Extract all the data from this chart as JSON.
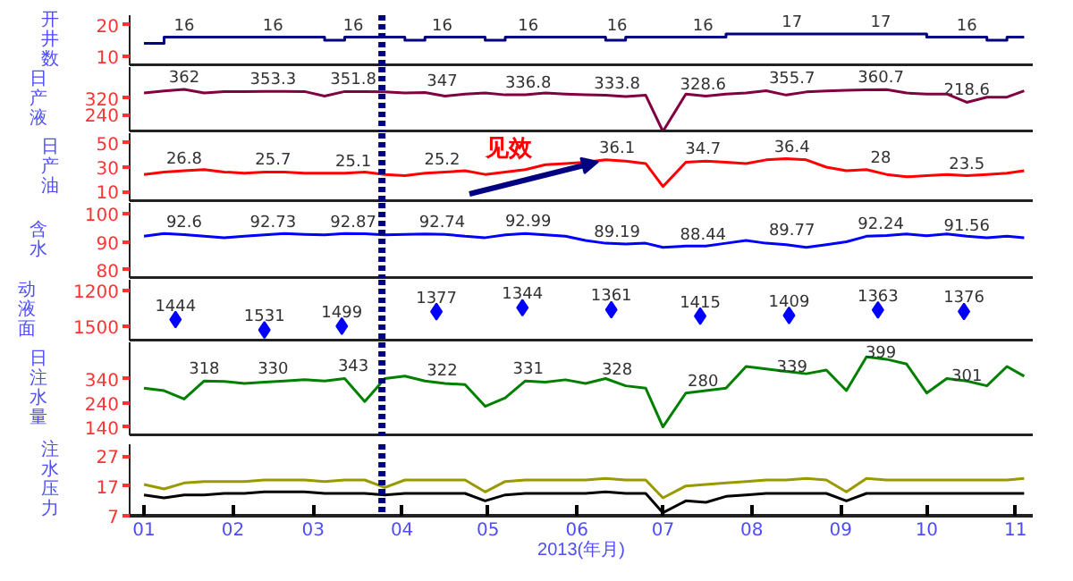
{
  "chart_data": [
    {
      "type": "step",
      "ylabel": "开井数",
      "xlim": [
        "2012-12-27",
        "2013-11-07"
      ],
      "ylim": [
        7,
        23
      ],
      "yticks": [
        10,
        20
      ],
      "tick_labels": "y",
      "color": "#000080",
      "x": [
        "2013-01-01",
        "2013-01-08",
        "2013-01-15",
        "2013-01-22",
        "2013-01-29",
        "2013-02-05",
        "2013-02-12",
        "2013-02-19",
        "2013-02-26",
        "2013-03-05",
        "2013-03-12",
        "2013-03-19",
        "2013-03-26",
        "2013-04-02",
        "2013-04-09",
        "2013-04-16",
        "2013-04-23",
        "2013-04-30",
        "2013-05-07",
        "2013-05-14",
        "2013-05-21",
        "2013-05-28",
        "2013-06-04",
        "2013-06-11",
        "2013-06-18",
        "2013-06-25",
        "2013-07-01",
        "2013-07-09",
        "2013-07-16",
        "2013-07-23",
        "2013-07-30",
        "2013-08-06",
        "2013-08-13",
        "2013-08-20",
        "2013-08-27",
        "2013-09-03",
        "2013-09-10",
        "2013-09-17",
        "2013-09-24",
        "2013-10-01",
        "2013-10-08",
        "2013-10-15",
        "2013-10-22",
        "2013-10-29",
        "2013-11-04"
      ],
      "values": [
        14,
        16,
        16,
        16,
        16,
        16,
        16,
        16,
        16,
        15,
        16,
        16,
        16,
        15,
        16,
        16,
        16,
        15,
        16,
        16,
        16,
        16,
        16,
        15,
        16,
        16,
        16,
        16,
        16,
        17,
        17,
        17,
        17,
        17,
        17,
        17,
        17,
        17,
        17,
        16,
        16,
        16,
        15,
        16,
        16
      ],
      "annotations": [
        {
          "text": "16",
          "x": "2013-01-15",
          "y": 16
        },
        {
          "text": "16",
          "x": "2013-02-15",
          "y": 16
        },
        {
          "text": "16",
          "x": "2013-03-15",
          "y": 16
        },
        {
          "text": "16",
          "x": "2013-04-15",
          "y": 16
        },
        {
          "text": "16",
          "x": "2013-05-15",
          "y": 16
        },
        {
          "text": "16",
          "x": "2013-06-15",
          "y": 16
        },
        {
          "text": "16",
          "x": "2013-07-15",
          "y": 16
        },
        {
          "text": "17",
          "x": "2013-08-15",
          "y": 17
        },
        {
          "text": "17",
          "x": "2013-09-15",
          "y": 17
        },
        {
          "text": "16",
          "x": "2013-10-15",
          "y": 16
        }
      ],
      "ref_lines": [
        {
          "axis": "x",
          "value": "2013-03-25",
          "color": "#000080",
          "line_style": "dotted"
        }
      ]
    },
    {
      "type": "line",
      "ylabel": "日产液",
      "xlim": [
        "2012-12-27",
        "2013-11-07"
      ],
      "ylim": [
        160,
        470
      ],
      "yticks": [
        240,
        320
      ],
      "tick_labels": "y",
      "color": "#800040",
      "x": [
        "2013-01-01",
        "2013-01-08",
        "2013-01-15",
        "2013-01-22",
        "2013-01-29",
        "2013-02-05",
        "2013-02-12",
        "2013-02-19",
        "2013-02-26",
        "2013-03-05",
        "2013-03-12",
        "2013-03-19",
        "2013-03-26",
        "2013-04-02",
        "2013-04-09",
        "2013-04-16",
        "2013-04-23",
        "2013-04-30",
        "2013-05-07",
        "2013-05-14",
        "2013-05-21",
        "2013-05-28",
        "2013-06-04",
        "2013-06-11",
        "2013-06-18",
        "2013-06-25",
        "2013-07-01",
        "2013-07-09",
        "2013-07-16",
        "2013-07-23",
        "2013-07-30",
        "2013-08-06",
        "2013-08-13",
        "2013-08-20",
        "2013-08-27",
        "2013-09-03",
        "2013-09-10",
        "2013-09-17",
        "2013-09-24",
        "2013-10-01",
        "2013-10-08",
        "2013-10-15",
        "2013-10-22",
        "2013-10-29",
        "2013-11-04"
      ],
      "values": [
        345,
        355,
        362,
        345,
        352,
        352,
        353,
        353,
        352,
        330,
        352,
        352,
        350,
        345,
        347,
        330,
        340,
        345,
        336,
        337,
        345,
        340,
        337,
        334,
        328,
        334,
        160,
        340,
        330,
        340,
        345,
        356,
        335,
        350,
        355,
        358,
        360,
        361,
        345,
        340,
        340,
        300,
        325,
        325,
        355
      ],
      "annotations": [
        {
          "text": "362",
          "x": "2013-01-15",
          "y": 362
        },
        {
          "text": "353.3",
          "x": "2013-02-15",
          "y": 353
        },
        {
          "text": "351.8",
          "x": "2013-03-15",
          "y": 352
        },
        {
          "text": "347",
          "x": "2013-04-15",
          "y": 347
        },
        {
          "text": "336.8",
          "x": "2013-05-15",
          "y": 337
        },
        {
          "text": "333.8",
          "x": "2013-06-15",
          "y": 334
        },
        {
          "text": "328.6",
          "x": "2013-07-15",
          "y": 329
        },
        {
          "text": "355.7",
          "x": "2013-08-15",
          "y": 356
        },
        {
          "text": "360.7",
          "x": "2013-09-15",
          "y": 361
        },
        {
          "text": "218.6",
          "x": "2013-10-15",
          "y": 300
        }
      ],
      "ref_lines": [
        {
          "axis": "x",
          "value": "2013-03-25",
          "color": "#000080",
          "line_style": "dotted"
        }
      ]
    },
    {
      "type": "line",
      "ylabel": "日产油",
      "xlim": [
        "2012-12-27",
        "2013-11-07"
      ],
      "ylim": [
        2,
        58
      ],
      "yticks": [
        10,
        30,
        50
      ],
      "tick_labels": "y",
      "color": "#ff0000",
      "x": [
        "2013-01-01",
        "2013-01-08",
        "2013-01-15",
        "2013-01-22",
        "2013-01-29",
        "2013-02-05",
        "2013-02-12",
        "2013-02-19",
        "2013-02-26",
        "2013-03-05",
        "2013-03-12",
        "2013-03-19",
        "2013-03-26",
        "2013-04-02",
        "2013-04-09",
        "2013-04-16",
        "2013-04-23",
        "2013-04-30",
        "2013-05-07",
        "2013-05-14",
        "2013-05-21",
        "2013-05-28",
        "2013-06-04",
        "2013-06-11",
        "2013-06-18",
        "2013-06-25",
        "2013-07-01",
        "2013-07-09",
        "2013-07-16",
        "2013-07-23",
        "2013-07-30",
        "2013-08-06",
        "2013-08-13",
        "2013-08-20",
        "2013-08-27",
        "2013-09-03",
        "2013-09-10",
        "2013-09-17",
        "2013-09-24",
        "2013-10-01",
        "2013-10-08",
        "2013-10-15",
        "2013-10-22",
        "2013-10-29",
        "2013-11-04"
      ],
      "values": [
        24,
        26,
        27,
        28,
        26,
        25,
        26,
        26,
        25,
        25,
        25,
        26,
        24,
        23,
        25,
        26,
        27,
        24,
        26,
        28,
        32,
        33,
        34,
        36,
        35,
        33,
        14,
        34,
        35,
        34,
        33,
        36,
        37,
        36,
        30,
        27,
        28,
        24,
        22,
        23,
        24,
        23,
        24,
        25,
        27
      ],
      "annotations": [
        {
          "text": "26.8",
          "x": "2013-01-15",
          "y": 27
        },
        {
          "text": "25.7",
          "x": "2013-02-15",
          "y": 26
        },
        {
          "text": "25.1",
          "x": "2013-03-15",
          "y": 25
        },
        {
          "text": "25.2",
          "x": "2013-04-15",
          "y": 26
        },
        "见效",
        {
          "text": "36.1",
          "x": "2013-06-15",
          "y": 36
        },
        {
          "text": "34.7",
          "x": "2013-07-15",
          "y": 35
        },
        {
          "text": "36.4",
          "x": "2013-08-15",
          "y": 37
        },
        {
          "text": "28",
          "x": "2013-09-15",
          "y": 28
        },
        {
          "text": "23.5",
          "x": "2013-10-15",
          "y": 23
        }
      ],
      "ref_lines": [
        {
          "axis": "x",
          "value": "2013-03-25",
          "color": "#000080",
          "line_style": "dotted"
        }
      ]
    },
    {
      "type": "line",
      "ylabel": "含水",
      "xlim": [
        "2012-12-27",
        "2013-11-07"
      ],
      "ylim": [
        77,
        104
      ],
      "yticks": [
        80,
        90,
        100
      ],
      "tick_labels": "y",
      "color": "#0000ff",
      "x": [
        "2013-01-01",
        "2013-01-08",
        "2013-01-15",
        "2013-01-22",
        "2013-01-29",
        "2013-02-05",
        "2013-02-12",
        "2013-02-19",
        "2013-02-26",
        "2013-03-05",
        "2013-03-12",
        "2013-03-19",
        "2013-03-26",
        "2013-04-02",
        "2013-04-09",
        "2013-04-16",
        "2013-04-23",
        "2013-04-30",
        "2013-05-07",
        "2013-05-14",
        "2013-05-21",
        "2013-05-28",
        "2013-06-04",
        "2013-06-11",
        "2013-06-18",
        "2013-06-25",
        "2013-07-01",
        "2013-07-09",
        "2013-07-16",
        "2013-07-23",
        "2013-07-30",
        "2013-08-06",
        "2013-08-13",
        "2013-08-20",
        "2013-08-27",
        "2013-09-03",
        "2013-09-10",
        "2013-09-17",
        "2013-09-24",
        "2013-10-01",
        "2013-10-08",
        "2013-10-15",
        "2013-10-22",
        "2013-10-29",
        "2013-11-04"
      ],
      "values": [
        92,
        93,
        92.6,
        92,
        91.5,
        92,
        92.5,
        93,
        92.7,
        92.5,
        93,
        92.9,
        92.5,
        92.7,
        92.8,
        92.7,
        92,
        91.5,
        92.5,
        93,
        92.5,
        92,
        90.5,
        89.5,
        89.2,
        89.5,
        88,
        88.5,
        88.5,
        89.5,
        90.5,
        89.5,
        89,
        88,
        89,
        90,
        92,
        92.3,
        92.8,
        92.2,
        92.8,
        92,
        91.5,
        92,
        91.5
      ],
      "annotations": [
        {
          "text": "92.6",
          "x": "2013-01-15",
          "y": 92.6
        },
        {
          "text": "92.73",
          "x": "2013-02-15",
          "y": 92.7
        },
        {
          "text": "92.87",
          "x": "2013-03-15",
          "y": 92.9
        },
        {
          "text": "92.74",
          "x": "2013-04-15",
          "y": 92.7
        },
        {
          "text": "92.99",
          "x": "2013-05-15",
          "y": 93
        },
        {
          "text": "89.19",
          "x": "2013-06-15",
          "y": 89.2
        },
        {
          "text": "88.44",
          "x": "2013-07-15",
          "y": 88.4
        },
        {
          "text": "89.77",
          "x": "2013-08-15",
          "y": 89.8
        },
        {
          "text": "92.24",
          "x": "2013-09-15",
          "y": 92.2
        },
        {
          "text": "91.56",
          "x": "2013-10-15",
          "y": 91.6
        }
      ],
      "ref_lines": [
        {
          "axis": "x",
          "value": "2013-03-25",
          "color": "#000080",
          "line_style": "dotted"
        }
      ]
    },
    {
      "type": "scatter",
      "ylabel": "动液面",
      "xlim": [
        "2012-12-27",
        "2013-11-07"
      ],
      "ylim": [
        1620,
        1110
      ],
      "yticks": [
        1200,
        1500
      ],
      "tick_labels": "y",
      "color": "#0000ff",
      "marker": "diamond",
      "data_labels": true,
      "x": [
        "2013-01-12",
        "2013-02-12",
        "2013-03-11",
        "2013-04-13",
        "2013-05-13",
        "2013-06-13",
        "2013-07-14",
        "2013-08-14",
        "2013-09-14",
        "2013-10-14"
      ],
      "values": [
        1444,
        1531,
        1499,
        1377,
        1344,
        1361,
        1415,
        1409,
        1363,
        1376
      ],
      "ref_lines": [
        {
          "axis": "x",
          "value": "2013-03-25",
          "color": "#000080",
          "line_style": "dotted"
        }
      ]
    },
    {
      "type": "line",
      "ylabel": "日注水量",
      "xlim": [
        "2012-12-27",
        "2013-11-07"
      ],
      "ylim": [
        105,
        490
      ],
      "yticks": [
        140,
        240,
        340
      ],
      "tick_labels": "y",
      "color": "#008000",
      "x": [
        "2013-01-01",
        "2013-01-08",
        "2013-01-15",
        "2013-01-22",
        "2013-01-29",
        "2013-02-05",
        "2013-02-12",
        "2013-02-19",
        "2013-02-26",
        "2013-03-05",
        "2013-03-12",
        "2013-03-19",
        "2013-03-26",
        "2013-04-02",
        "2013-04-09",
        "2013-04-16",
        "2013-04-23",
        "2013-04-30",
        "2013-05-07",
        "2013-05-14",
        "2013-05-21",
        "2013-05-28",
        "2013-06-04",
        "2013-06-11",
        "2013-06-18",
        "2013-06-25",
        "2013-07-01",
        "2013-07-09",
        "2013-07-16",
        "2013-07-23",
        "2013-07-30",
        "2013-08-06",
        "2013-08-13",
        "2013-08-20",
        "2013-08-27",
        "2013-09-03",
        "2013-09-10",
        "2013-09-17",
        "2013-09-24",
        "2013-10-01",
        "2013-10-08",
        "2013-10-15",
        "2013-10-22",
        "2013-10-29",
        "2013-11-04"
      ],
      "values": [
        300,
        290,
        255,
        330,
        328,
        320,
        325,
        330,
        335,
        330,
        340,
        245,
        340,
        350,
        330,
        320,
        315,
        225,
        260,
        330,
        325,
        335,
        320,
        340,
        310,
        300,
        140,
        280,
        290,
        300,
        390,
        380,
        370,
        360,
        375,
        290,
        430,
        420,
        400,
        280,
        340,
        330,
        310,
        390,
        350
      ],
      "annotations": [
        {
          "text": "318",
          "x": "2013-01-22",
          "y": 330
        },
        {
          "text": "330",
          "x": "2013-02-15",
          "y": 330
        },
        {
          "text": "343",
          "x": "2013-03-15",
          "y": 343
        },
        {
          "text": "322",
          "x": "2013-04-15",
          "y": 322
        },
        {
          "text": "331",
          "x": "2013-05-15",
          "y": 331
        },
        {
          "text": "328",
          "x": "2013-06-15",
          "y": 328
        },
        {
          "text": "280",
          "x": "2013-07-15",
          "y": 280
        },
        {
          "text": "339",
          "x": "2013-08-15",
          "y": 339
        },
        {
          "text": "399",
          "x": "2013-09-15",
          "y": 399
        },
        {
          "text": "301",
          "x": "2013-10-15",
          "y": 301
        }
      ],
      "ref_lines": [
        {
          "axis": "x",
          "value": "2013-03-25",
          "color": "#000080",
          "line_style": "dotted"
        }
      ]
    },
    {
      "type": "line",
      "ylabel": "注水压力",
      "xlabel": "2013(年月)",
      "xlim": [
        "2012-12-27",
        "2013-11-07"
      ],
      "xticks": [
        {
          "value": "2013-01-01",
          "label": "01"
        },
        {
          "value": "2013-02-01",
          "label": "02"
        },
        {
          "value": "2013-03-01",
          "label": "03"
        },
        {
          "value": "2013-04-01",
          "label": "04"
        },
        {
          "value": "2013-05-01",
          "label": "05"
        },
        {
          "value": "2013-06-01",
          "label": "06"
        },
        {
          "value": "2013-07-01",
          "label": "07"
        },
        {
          "value": "2013-08-01",
          "label": "08"
        },
        {
          "value": "2013-09-01",
          "label": "09"
        },
        {
          "value": "2013-10-01",
          "label": "10"
        },
        {
          "value": "2013-11-01",
          "label": "11"
        }
      ],
      "ylim": [
        7,
        31
      ],
      "yticks": [
        7,
        17,
        27
      ],
      "x": [
        "2013-01-01",
        "2013-01-08",
        "2013-01-15",
        "2013-01-22",
        "2013-01-29",
        "2013-02-05",
        "2013-02-12",
        "2013-02-19",
        "2013-02-26",
        "2013-03-05",
        "2013-03-12",
        "2013-03-19",
        "2013-03-26",
        "2013-04-02",
        "2013-04-09",
        "2013-04-16",
        "2013-04-23",
        "2013-04-30",
        "2013-05-07",
        "2013-05-14",
        "2013-05-21",
        "2013-05-28",
        "2013-06-04",
        "2013-06-11",
        "2013-06-18",
        "2013-06-25",
        "2013-07-01",
        "2013-07-09",
        "2013-07-16",
        "2013-07-23",
        "2013-07-30",
        "2013-08-06",
        "2013-08-13",
        "2013-08-20",
        "2013-08-27",
        "2013-09-03",
        "2013-09-10",
        "2013-09-17",
        "2013-09-24",
        "2013-10-01",
        "2013-10-08",
        "2013-10-15",
        "2013-10-22",
        "2013-10-29",
        "2013-11-04"
      ],
      "series": [
        {
          "color": "#999900",
          "values": [
            17.5,
            16,
            18,
            18.5,
            18.5,
            18.5,
            19,
            19,
            19,
            18.5,
            19,
            19,
            16.5,
            19,
            19,
            19,
            19,
            15,
            18.5,
            19,
            19,
            19,
            19,
            19.5,
            19,
            19,
            13,
            17,
            17.5,
            18,
            18.5,
            19,
            19,
            19.5,
            19,
            15,
            19.5,
            19,
            19,
            19,
            19,
            19,
            19,
            19,
            19.5
          ]
        },
        {
          "color": "#000000",
          "values": [
            14,
            13,
            14,
            14,
            14.5,
            14.5,
            15,
            15,
            15,
            14.5,
            14.5,
            14.5,
            14,
            14.5,
            14.5,
            14.5,
            14.5,
            12,
            14,
            14.5,
            14.5,
            14.5,
            14.5,
            15,
            14.5,
            14.5,
            8,
            12,
            11.5,
            13.5,
            14,
            14.5,
            14.5,
            14.5,
            14.5,
            12,
            14.5,
            14.5,
            14.5,
            14.5,
            14.5,
            14.5,
            14.5,
            14.5,
            14.5
          ]
        }
      ],
      "ref_lines": [
        {
          "axis": "x",
          "value": "2013-03-25",
          "color": "#000080",
          "line_style": "dotted"
        }
      ]
    }
  ]
}
